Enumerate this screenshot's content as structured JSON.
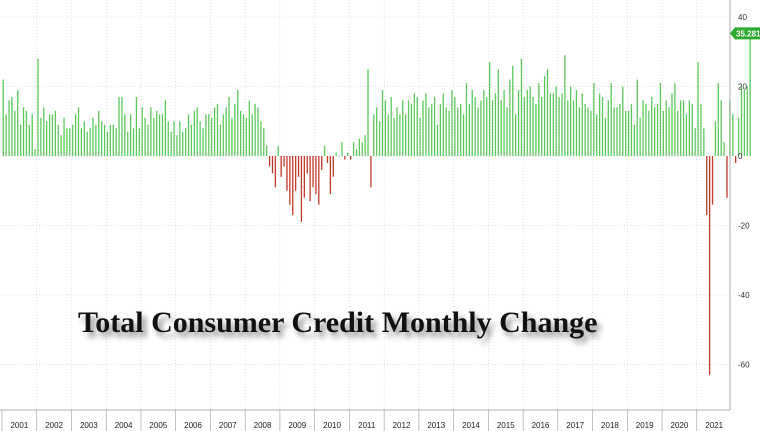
{
  "chart_data": {
    "type": "bar",
    "title": "Total Consumer Credit Monthly Change",
    "xlabel": "",
    "ylabel": "",
    "ylim": [
      -73,
      43
    ],
    "yticks": [
      40,
      20,
      0,
      -20,
      -40,
      -60
    ],
    "grid": true,
    "x_tick_labels": [
      "2001",
      "2002",
      "2003",
      "2004",
      "2005",
      "2006",
      "2007",
      "2008",
      "2009",
      "2010",
      "2011",
      "2012",
      "2013",
      "2014",
      "2015",
      "2016",
      "2017",
      "2018",
      "2019",
      "2020",
      "2021"
    ],
    "last_value_label": "35.281",
    "positive_color": "#5cc85c",
    "negative_color": "#c0392b",
    "label_color": "#2eaa2e",
    "x_start": "2001-01",
    "values": [
      22,
      12,
      16,
      17,
      13,
      19,
      9,
      14,
      13,
      9,
      12,
      2,
      28,
      11,
      14,
      10,
      12,
      12,
      13,
      9,
      6,
      11,
      8,
      8,
      9,
      12,
      14,
      8,
      10,
      7,
      8,
      11,
      9,
      13,
      10,
      9,
      7,
      9,
      9,
      8,
      17,
      17,
      12,
      7,
      12,
      8,
      17,
      8,
      14,
      11,
      9,
      14,
      11,
      13,
      12,
      12,
      16,
      10,
      7,
      10,
      6,
      10,
      7,
      8,
      12,
      9,
      13,
      14,
      10,
      8,
      12,
      12,
      11,
      14,
      15,
      9,
      12,
      14,
      17,
      11,
      15,
      19,
      13,
      12,
      11,
      16,
      12,
      15,
      14,
      10,
      8,
      3,
      -3,
      -5,
      -9,
      3,
      -6,
      -3,
      -10,
      -14,
      -17,
      -10,
      -6,
      -19,
      -12,
      -5,
      -13,
      -9,
      -11,
      -14,
      -4,
      3,
      -2,
      -11,
      -6,
      1,
      0,
      4,
      -1,
      1,
      -1,
      4,
      2,
      5,
      4,
      6,
      25,
      -9,
      12,
      14,
      10,
      19,
      16,
      12,
      17,
      11,
      14,
      12,
      16,
      12,
      16,
      15,
      18,
      17,
      11,
      16,
      18,
      14,
      15,
      17,
      9,
      15,
      18,
      14,
      13,
      19,
      17,
      14,
      15,
      12,
      21,
      15,
      19,
      17,
      14,
      16,
      19,
      17,
      27,
      16,
      18,
      25,
      16,
      19,
      14,
      22,
      26,
      12,
      19,
      28,
      17,
      19,
      20,
      17,
      15,
      21,
      17,
      23,
      25,
      18,
      18,
      20,
      17,
      18,
      29,
      16,
      20,
      16,
      19,
      14,
      18,
      15,
      14,
      13,
      21,
      12,
      18,
      17,
      11,
      16,
      21,
      14,
      14,
      15,
      20,
      13,
      13,
      15,
      9,
      22,
      11,
      16,
      15,
      13,
      17,
      14,
      15,
      21,
      13,
      16,
      14,
      18,
      21,
      13,
      16,
      16,
      12,
      16,
      15,
      8,
      27,
      15,
      8,
      -17,
      -63,
      -14,
      10,
      21,
      16,
      4,
      -12,
      16,
      12,
      -2,
      11,
      20,
      19,
      20,
      35.281
    ]
  }
}
